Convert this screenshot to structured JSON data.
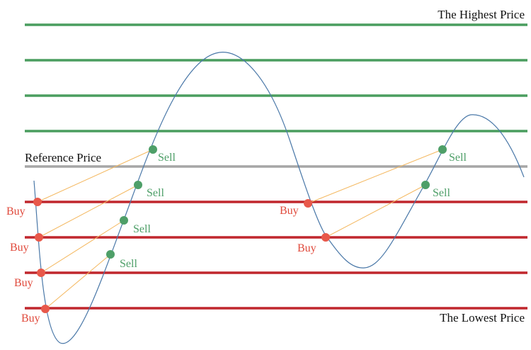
{
  "labels": {
    "highest": "The Highest Price",
    "reference": "Reference Price",
    "lowest": "The Lowest Price",
    "buy": "Buy",
    "sell": "Sell"
  },
  "colors": {
    "sell_line": "#4a9d5f",
    "reference_line": "#a6a6a6",
    "buy_line": "#c0272d",
    "buy_dot": "#e8584a",
    "sell_dot": "#4e9f68",
    "connector": "#f4b860",
    "curve": "#4a78a8",
    "buy_text": "#e04a3c",
    "sell_text": "#4e9f68"
  },
  "trades": {
    "buys_count": 6,
    "sells_count": 6
  }
}
